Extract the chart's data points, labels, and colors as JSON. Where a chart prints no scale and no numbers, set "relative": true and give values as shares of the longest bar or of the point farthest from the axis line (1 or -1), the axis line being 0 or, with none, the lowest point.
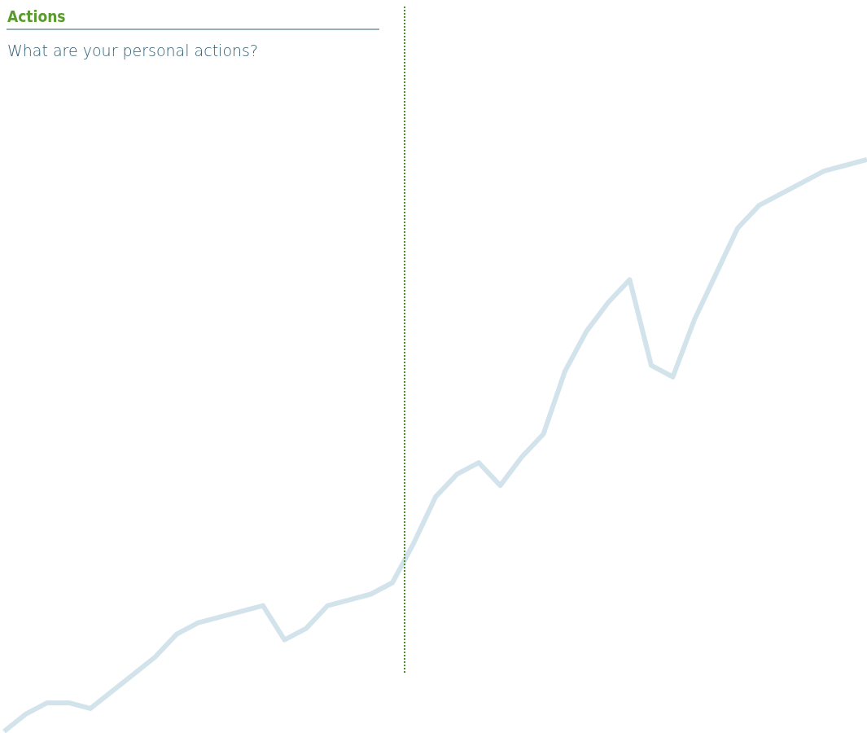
{
  "chart_data": {
    "type": "line",
    "title": "Actions",
    "subtitle": "What are your personal actions?",
    "relative": true,
    "categories": [
      null,
      null,
      null,
      null,
      null,
      null,
      null,
      null,
      null,
      null,
      null,
      null,
      null,
      null,
      null,
      null,
      null,
      null,
      null,
      null,
      null,
      null,
      null,
      null,
      null,
      null,
      null,
      null,
      null,
      null,
      null,
      null,
      null,
      null,
      null,
      null,
      null,
      null,
      null,
      null,
      null
    ],
    "series": [
      {
        "color": "#d3e3ec",
        "values": [
          0,
          0.03,
          0.05,
          0.05,
          0.04,
          0.07,
          0.1,
          0.13,
          0.17,
          0.19,
          0.2,
          0.21,
          0.22,
          0.16,
          0.18,
          0.22,
          0.23,
          0.24,
          0.26,
          0.33,
          0.41,
          0.45,
          0.47,
          0.43,
          0.48,
          0.52,
          0.63,
          0.7,
          0.75,
          0.79,
          0.64,
          0.62,
          0.72,
          0.8,
          0.88,
          0.92,
          0.94,
          0.96,
          0.98,
          0.99,
          1
        ]
      }
    ]
  }
}
